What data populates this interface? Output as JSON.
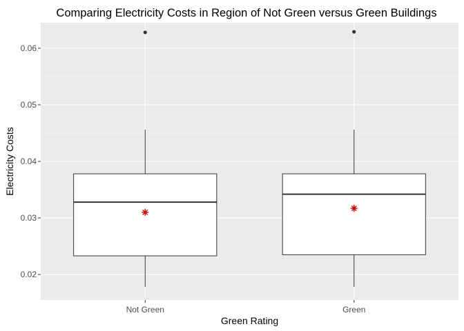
{
  "chart_data": {
    "type": "boxplot",
    "title": "Comparing Electricity Costs in Region of Not Green versus Green Buildings",
    "xlabel": "Green Rating",
    "ylabel": "Electricity Costs",
    "categories": [
      "Not Green",
      "Green"
    ],
    "ylim": [
      0.0155,
      0.0645
    ],
    "yticks": [
      0.02,
      0.03,
      0.04,
      0.05,
      0.06
    ],
    "ytick_labels": [
      "0.02",
      "0.03",
      "0.04",
      "0.05",
      "0.06"
    ],
    "grid": true,
    "legend": "none",
    "boxes": [
      {
        "category": "Not Green",
        "whisker_low": 0.0178,
        "q1": 0.0233,
        "median": 0.0328,
        "q3": 0.0378,
        "whisker_high": 0.0456,
        "mean": 0.031,
        "outliers": [
          0.0628
        ]
      },
      {
        "category": "Green",
        "whisker_low": 0.0178,
        "q1": 0.0235,
        "median": 0.0342,
        "q3": 0.0378,
        "whisker_high": 0.0456,
        "mean": 0.0317,
        "outliers": [
          0.0629
        ]
      }
    ],
    "colors": {
      "panel": "#ebebeb",
      "grid_major": "#ffffff",
      "grid_minor": "#f5f5f5",
      "box_fill": "#ffffff",
      "box_line": "#333333",
      "mean_marker": "#cc0000"
    }
  }
}
